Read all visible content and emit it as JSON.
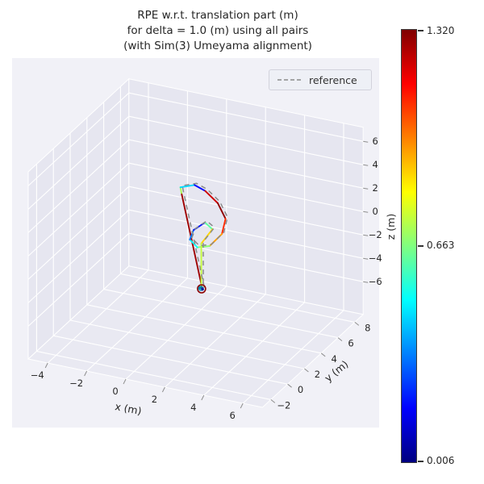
{
  "title": {
    "line1": "RPE w.r.t. translation part (m)",
    "line2": "for delta = 1.0 (m) using all pairs",
    "line3": "(with Sim(3) Umeyama alignment)"
  },
  "legend": {
    "label": "reference",
    "line_style": "dashed",
    "line_color": "#8a8a8a"
  },
  "colorbar": {
    "labels": [
      "1.320",
      "0.663",
      "0.006"
    ],
    "vmin": 0.006,
    "vmax": 1.32,
    "colormap": "jet"
  },
  "chart_data": {
    "type": "line",
    "projection": "3d",
    "title": "RPE w.r.t. translation part (m) for delta = 1.0 (m) using all pairs (with Sim(3) Umeyama alignment)",
    "xlabel": "x (m)",
    "ylabel": "y (m)",
    "zlabel": "z (m)",
    "xlim": [
      -5,
      7
    ],
    "ylim": [
      -3,
      9
    ],
    "zlim": [
      -8.8,
      7.2
    ],
    "x_ticks": [
      -4,
      -2,
      0,
      2,
      4,
      6
    ],
    "y_ticks": [
      -2,
      0,
      2,
      4,
      6,
      8
    ],
    "z_ticks": [
      -6,
      -4,
      -2,
      0,
      2,
      4,
      6
    ],
    "grid": true,
    "colormap": "jet",
    "color_range": [
      0.006,
      1.32
    ],
    "colorbar_tick_values": [
      1.32,
      0.663,
      0.006
    ],
    "legend_entries": [
      "reference"
    ],
    "point_format": [
      "x",
      "y",
      "z",
      "rpe"
    ],
    "series": [
      {
        "name": "estimate-colored-by-rpe",
        "points": [
          [
            1.3,
            3.0,
            -4.6,
            0.35
          ],
          [
            1.35,
            2.95,
            -4.55,
            0.12
          ],
          [
            1.3,
            3.05,
            -4.5,
            1.28
          ],
          [
            0.1,
            3.4,
            2.9,
            0.72
          ],
          [
            0.0,
            3.5,
            3.3,
            0.45
          ],
          [
            0.6,
            3.8,
            3.5,
            0.18
          ],
          [
            1.1,
            3.9,
            3.1,
            1.22
          ],
          [
            1.7,
            4.0,
            2.2,
            1.3
          ],
          [
            2.1,
            4.0,
            1.0,
            1.1
          ],
          [
            2.0,
            3.8,
            -0.2,
            0.95
          ],
          [
            1.5,
            3.5,
            -1.2,
            0.68
          ],
          [
            1.0,
            3.2,
            -1.3,
            0.5
          ],
          [
            0.7,
            3.0,
            -0.6,
            0.32
          ],
          [
            0.85,
            3.1,
            0.2,
            0.2
          ],
          [
            1.3,
            3.4,
            0.8,
            0.62
          ],
          [
            1.6,
            3.6,
            0.2,
            0.88
          ],
          [
            1.2,
            3.2,
            -0.9,
            0.75
          ],
          [
            1.28,
            3.02,
            -4.55,
            1.32
          ],
          [
            1.32,
            2.98,
            -4.6,
            0.28
          ],
          [
            1.3,
            3.0,
            -4.58,
            0.05
          ]
        ]
      },
      {
        "name": "reference",
        "style": "dashed",
        "color": "#8a8a8a",
        "note": "ground-truth trajectory overlapping the estimate"
      }
    ]
  }
}
